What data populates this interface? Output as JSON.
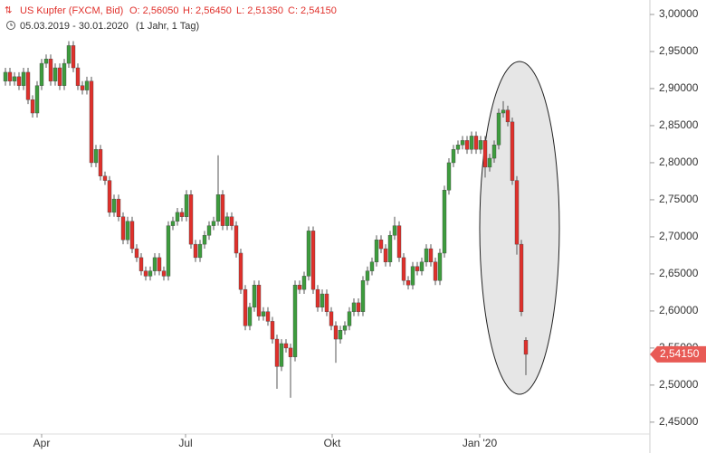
{
  "chart_data": {
    "type": "candlestick",
    "header": {
      "symbol": "US Kupfer (FXCM, Bid)",
      "open": "O: 2,56050",
      "high": "H: 2,56450",
      "low": "L: 2,51350",
      "close": "C: 2,54150",
      "range": "05.03.2019 - 30.01.2020",
      "period": "(1 Jahr, 1 Tag)"
    },
    "last_label": "2,54150",
    "series": [
      {
        "up_color": "#3d9c3d",
        "down_color": "#e0302b",
        "open": [
          2.91,
          2.922,
          2.91,
          2.916,
          2.904,
          2.922,
          2.885,
          2.867,
          2.904,
          2.934,
          2.94,
          2.91,
          2.928,
          2.904,
          2.934,
          2.958,
          2.928,
          2.904,
          2.898,
          2.91,
          2.8,
          2.818,
          2.782,
          2.776,
          2.733,
          2.751,
          2.727,
          2.696,
          2.721,
          2.684,
          2.672,
          2.654,
          2.647,
          2.654,
          2.672,
          2.654,
          2.647,
          2.715,
          2.721,
          2.733,
          2.727,
          2.757,
          2.69,
          2.672,
          2.69,
          2.702,
          2.715,
          2.721,
          2.757,
          2.715,
          2.727,
          2.715,
          2.678,
          2.629,
          2.58,
          2.605,
          2.635,
          2.593,
          2.599,
          2.586,
          2.562,
          2.525,
          2.556,
          2.55,
          2.538,
          2.635,
          2.629,
          2.647,
          2.708,
          2.629,
          2.605,
          2.623,
          2.599,
          2.58,
          2.562,
          2.574,
          2.58,
          2.599,
          2.611,
          2.599,
          2.641,
          2.654,
          2.666,
          2.696,
          2.684,
          2.666,
          2.702,
          2.715,
          2.672,
          2.641,
          2.635,
          2.66,
          2.654,
          2.666,
          2.684,
          2.666,
          2.641,
          2.678,
          2.763,
          2.8,
          2.818,
          2.824,
          2.83,
          2.818,
          2.836,
          2.818,
          2.83,
          2.794,
          2.806,
          2.824,
          2.867,
          2.871,
          2.855,
          2.776,
          2.69,
          2.5605
        ],
        "high": [
          2.928,
          2.928,
          2.922,
          2.922,
          2.928,
          2.928,
          2.891,
          2.91,
          2.94,
          2.946,
          2.946,
          2.934,
          2.934,
          2.94,
          2.964,
          2.964,
          2.934,
          2.91,
          2.916,
          2.916,
          2.824,
          2.824,
          2.788,
          2.782,
          2.757,
          2.757,
          2.733,
          2.727,
          2.727,
          2.69,
          2.678,
          2.66,
          2.66,
          2.678,
          2.678,
          2.66,
          2.721,
          2.727,
          2.739,
          2.739,
          2.763,
          2.763,
          2.696,
          2.696,
          2.708,
          2.721,
          2.727,
          2.81,
          2.763,
          2.733,
          2.733,
          2.721,
          2.684,
          2.635,
          2.611,
          2.641,
          2.641,
          2.605,
          2.605,
          2.592,
          2.568,
          2.562,
          2.562,
          2.556,
          2.641,
          2.641,
          2.653,
          2.714,
          2.714,
          2.635,
          2.629,
          2.629,
          2.605,
          2.586,
          2.58,
          2.586,
          2.605,
          2.617,
          2.617,
          2.647,
          2.66,
          2.672,
          2.702,
          2.702,
          2.69,
          2.708,
          2.727,
          2.721,
          2.678,
          2.647,
          2.666,
          2.666,
          2.672,
          2.69,
          2.69,
          2.672,
          2.684,
          2.769,
          2.806,
          2.824,
          2.83,
          2.836,
          2.836,
          2.842,
          2.842,
          2.836,
          2.836,
          2.812,
          2.83,
          2.873,
          2.883,
          2.877,
          2.861,
          2.782,
          2.696,
          2.5645
        ],
        "low": [
          2.904,
          2.904,
          2.904,
          2.898,
          2.898,
          2.879,
          2.861,
          2.861,
          2.898,
          2.928,
          2.904,
          2.904,
          2.898,
          2.898,
          2.928,
          2.922,
          2.898,
          2.892,
          2.892,
          2.794,
          2.794,
          2.776,
          2.77,
          2.727,
          2.727,
          2.721,
          2.69,
          2.69,
          2.678,
          2.666,
          2.648,
          2.641,
          2.641,
          2.648,
          2.648,
          2.641,
          2.641,
          2.709,
          2.715,
          2.721,
          2.721,
          2.684,
          2.666,
          2.666,
          2.684,
          2.696,
          2.709,
          2.715,
          2.709,
          2.709,
          2.709,
          2.672,
          2.623,
          2.574,
          2.574,
          2.599,
          2.587,
          2.587,
          2.58,
          2.556,
          2.495,
          2.519,
          2.544,
          2.483,
          2.532,
          2.623,
          2.623,
          2.641,
          2.623,
          2.599,
          2.599,
          2.593,
          2.574,
          2.53,
          2.556,
          2.568,
          2.574,
          2.593,
          2.593,
          2.593,
          2.635,
          2.648,
          2.66,
          2.678,
          2.66,
          2.66,
          2.696,
          2.666,
          2.635,
          2.629,
          2.629,
          2.648,
          2.648,
          2.66,
          2.66,
          2.635,
          2.635,
          2.672,
          2.757,
          2.794,
          2.812,
          2.818,
          2.812,
          2.812,
          2.812,
          2.812,
          2.78,
          2.788,
          2.8,
          2.818,
          2.861,
          2.849,
          2.77,
          2.676,
          2.593,
          2.5135
        ],
        "close": [
          2.922,
          2.91,
          2.916,
          2.904,
          2.922,
          2.885,
          2.867,
          2.904,
          2.934,
          2.94,
          2.91,
          2.928,
          2.904,
          2.934,
          2.958,
          2.928,
          2.904,
          2.898,
          2.91,
          2.8,
          2.818,
          2.782,
          2.776,
          2.733,
          2.751,
          2.727,
          2.696,
          2.721,
          2.684,
          2.672,
          2.654,
          2.647,
          2.654,
          2.672,
          2.654,
          2.647,
          2.715,
          2.721,
          2.733,
          2.727,
          2.757,
          2.69,
          2.672,
          2.69,
          2.702,
          2.715,
          2.721,
          2.757,
          2.715,
          2.727,
          2.715,
          2.678,
          2.629,
          2.58,
          2.605,
          2.635,
          2.593,
          2.599,
          2.586,
          2.562,
          2.525,
          2.556,
          2.55,
          2.538,
          2.635,
          2.629,
          2.647,
          2.708,
          2.629,
          2.605,
          2.623,
          2.599,
          2.58,
          2.562,
          2.574,
          2.58,
          2.599,
          2.611,
          2.599,
          2.641,
          2.654,
          2.666,
          2.696,
          2.684,
          2.666,
          2.702,
          2.715,
          2.672,
          2.641,
          2.635,
          2.66,
          2.654,
          2.666,
          2.684,
          2.666,
          2.641,
          2.678,
          2.763,
          2.8,
          2.818,
          2.824,
          2.83,
          2.818,
          2.836,
          2.818,
          2.83,
          2.794,
          2.806,
          2.824,
          2.867,
          2.871,
          2.855,
          2.776,
          2.69,
          2.599,
          2.5415
        ]
      }
    ],
    "xlim": [
      -1.2,
      142.4
    ],
    "xticks": [
      {
        "value": 8,
        "label": "Apr"
      },
      {
        "value": 39.8,
        "label": "Jul"
      },
      {
        "value": 72.2,
        "label": "Okt"
      },
      {
        "value": 104.8,
        "label": "Jan '20"
      }
    ],
    "ylim": [
      2.434,
      3.0195
    ],
    "yticks": [
      {
        "value": 2.45,
        "label": "2,45000"
      },
      {
        "value": 2.5,
        "label": "2,50000"
      },
      {
        "value": 2.55,
        "label": "2,55000"
      },
      {
        "value": 2.6,
        "label": "2,60000"
      },
      {
        "value": 2.65,
        "label": "2,65000"
      },
      {
        "value": 2.7,
        "label": "2,70000"
      },
      {
        "value": 2.75,
        "label": "2,75000"
      },
      {
        "value": 2.8,
        "label": "2,80000"
      },
      {
        "value": 2.85,
        "label": "2,85000"
      },
      {
        "value": 2.9,
        "label": "2,90000"
      },
      {
        "value": 2.95,
        "label": "2,95000"
      },
      {
        "value": 3.0,
        "label": "3,00000"
      }
    ]
  }
}
